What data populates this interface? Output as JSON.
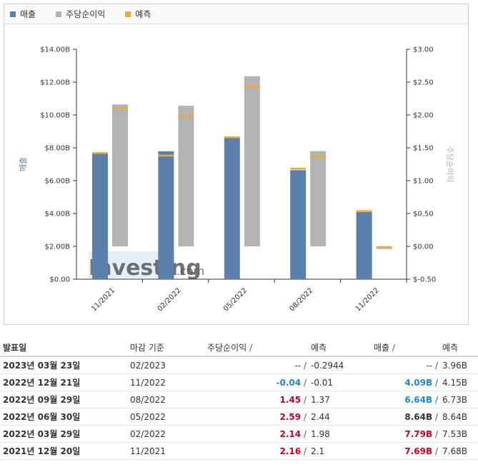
{
  "legend": {
    "items": [
      {
        "label": "매출",
        "color": "#5b7fab"
      },
      {
        "label": "주당순이익",
        "color": "#b3b3b3"
      },
      {
        "label": "예측",
        "color": "#f0a830"
      }
    ]
  },
  "watermark": {
    "brand": "Investing",
    "suffix": ".com"
  },
  "chart_data": {
    "type": "bar",
    "categories": [
      "11/2021",
      "02/2022",
      "05/2022",
      "08/2022",
      "11/2022"
    ],
    "y_left": {
      "label": "매출",
      "ticks": [
        "$0.00",
        "$2.00B",
        "$4.00B",
        "$6.00B",
        "$8.00B",
        "$10.00B",
        "$12.00B",
        "$14.00B"
      ],
      "range": [
        0,
        14
      ]
    },
    "y_right": {
      "label": "주당순이익",
      "ticks": [
        "$-0.50",
        "$0.00",
        "$0.50",
        "$1.00",
        "$1.50",
        "$2.00",
        "$2.50",
        "$3.00"
      ],
      "range": [
        -0.5,
        3
      ]
    },
    "series": [
      {
        "name": "매출",
        "axis": "left",
        "values": [
          7.69,
          7.79,
          8.64,
          6.64,
          4.09
        ],
        "forecast": [
          7.68,
          7.53,
          8.64,
          6.73,
          4.15
        ],
        "color": "#5b7fab"
      },
      {
        "name": "주당순이익",
        "axis": "right",
        "values": [
          2.16,
          2.14,
          2.59,
          1.45,
          -0.04
        ],
        "forecast": [
          2.1,
          1.98,
          2.44,
          1.37,
          -0.01
        ],
        "color": "#b3b3b3"
      }
    ],
    "forecast_color": "#f0a830",
    "grid": false
  },
  "table": {
    "headers": {
      "date": "발표일",
      "period": "마감 기준",
      "eps": "주당순이익",
      "eps_slash": "/",
      "eps_forecast": "예측",
      "revenue": "매출",
      "rev_slash": "/",
      "rev_forecast": "예측"
    },
    "rows": [
      {
        "date": "2023년 03월 23일",
        "period": "02/2023",
        "eps": "--",
        "eps_forecast": "-0.2944",
        "revenue": "--",
        "rev_forecast": "3.96B",
        "eps_style": "none",
        "rev_style": "none"
      },
      {
        "date": "2022년 12월 21일",
        "period": "11/2022",
        "eps": "-0.04",
        "eps_forecast": "-0.01",
        "revenue": "4.09B",
        "rev_forecast": "4.15B",
        "eps_style": "blue",
        "rev_style": "blue"
      },
      {
        "date": "2022년 09월 29일",
        "period": "08/2022",
        "eps": "1.45",
        "eps_forecast": "1.37",
        "revenue": "6.64B",
        "rev_forecast": "6.73B",
        "eps_style": "red",
        "rev_style": "blue"
      },
      {
        "date": "2022년 06월 30일",
        "period": "05/2022",
        "eps": "2.59",
        "eps_forecast": "2.44",
        "revenue": "8.64B",
        "rev_forecast": "8.64B",
        "eps_style": "red",
        "rev_style": "none_bold"
      },
      {
        "date": "2022년 03월 29일",
        "period": "02/2022",
        "eps": "2.14",
        "eps_forecast": "1.98",
        "revenue": "7.79B",
        "rev_forecast": "7.53B",
        "eps_style": "red",
        "rev_style": "red"
      },
      {
        "date": "2021년 12월 20일",
        "period": "11/2021",
        "eps": "2.16",
        "eps_forecast": "2.1",
        "revenue": "7.69B",
        "rev_forecast": "7.68B",
        "eps_style": "red",
        "rev_style": "red"
      }
    ]
  }
}
